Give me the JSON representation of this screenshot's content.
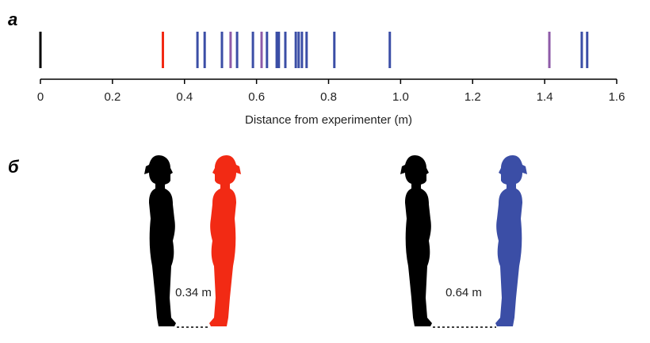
{
  "panel_labels": [
    "a",
    "б"
  ],
  "chart_data": {
    "type": "strip",
    "x_label": "Distance from experimenter (m)",
    "values": [
      0,
      0.34,
      0.436,
      0.456,
      0.504,
      0.528,
      0.546,
      0.59,
      0.614,
      0.629,
      0.656,
      0.662,
      0.68,
      0.709,
      0.717,
      0.726,
      0.739,
      0.816,
      0.97,
      1.413,
      1.503,
      1.518
    ],
    "colors": [
      "#000000",
      "#f22a14",
      "#3b4ea6",
      "#3b4ea6",
      "#3b4ea6",
      "#8e5ba8",
      "#3b4ea6",
      "#3b4ea6",
      "#8e5ba8",
      "#3b4ea6",
      "#3b4ea6",
      "#3b4ea6",
      "#3b4ea6",
      "#3b4ea6",
      "#3b4ea6",
      "#3b4ea6",
      "#3b4ea6",
      "#3b4ea6",
      "#3b4ea6",
      "#8e5ba8",
      "#3b4ea6",
      "#3b4ea6"
    ],
    "xlim": [
      0,
      1.6
    ],
    "xticks": [
      0,
      0.2,
      0.4,
      0.6,
      0.8,
      {
        "value": 1,
        "label": "1.0"
      },
      1.2,
      1.4,
      1.6
    ]
  },
  "diagram": {
    "labels": [
      "0.34 m",
      "0.64 m"
    ]
  }
}
